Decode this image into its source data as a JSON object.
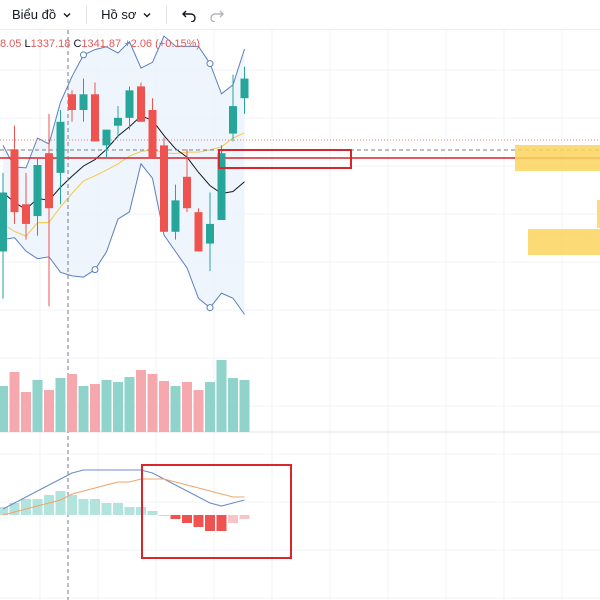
{
  "toolbar": {
    "chart_menu_label": "Biểu đồ",
    "profile_menu_label": "Hồ sơ",
    "undo_icon": "undo-icon",
    "redo_icon": "redo-icon"
  },
  "ohlc": {
    "high_fragment": "8.05",
    "low_label": "L",
    "low_value": "1337.18",
    "close_label": "C",
    "close_value": "1341.87",
    "change": "+2.06 (+0.15%)"
  },
  "colors": {
    "up": "#26a69a",
    "down": "#ef5350",
    "band": "#5b7fbf",
    "ma_fast": "#131722",
    "ma_slow": "#f2c94c",
    "annotation": "#d9252b",
    "zone": "#fbd35d"
  },
  "chart_data": {
    "type": "candlestick",
    "candles": [
      {
        "o": 1305,
        "h": 1325,
        "l": 1293,
        "c": 1320
      },
      {
        "o": 1331,
        "h": 1337,
        "l": 1312,
        "c": 1315
      },
      {
        "o": 1317,
        "h": 1325,
        "l": 1308,
        "c": 1312
      },
      {
        "o": 1314,
        "h": 1329,
        "l": 1309,
        "c": 1327
      },
      {
        "o": 1330,
        "h": 1340,
        "l": 1291,
        "c": 1316
      },
      {
        "o": 1325,
        "h": 1341,
        "l": 1317,
        "c": 1338
      },
      {
        "o": 1345,
        "h": 1346,
        "l": 1338,
        "c": 1341
      },
      {
        "o": 1341,
        "h": 1349,
        "l": 1338,
        "c": 1345
      },
      {
        "o": 1345,
        "h": 1348,
        "l": 1333,
        "c": 1333
      },
      {
        "o": 1332,
        "h": 1336,
        "l": 1329,
        "c": 1336
      },
      {
        "o": 1337,
        "h": 1342,
        "l": 1334,
        "c": 1339
      },
      {
        "o": 1339,
        "h": 1347,
        "l": 1336,
        "c": 1346
      },
      {
        "o": 1347,
        "h": 1348,
        "l": 1338,
        "c": 1338
      },
      {
        "o": 1341,
        "h": 1344,
        "l": 1329,
        "c": 1329
      },
      {
        "o": 1332,
        "h": 1334,
        "l": 1310,
        "c": 1310
      },
      {
        "o": 1310,
        "h": 1322,
        "l": 1308,
        "c": 1318
      },
      {
        "o": 1324,
        "h": 1331,
        "l": 1315,
        "c": 1316
      },
      {
        "o": 1315,
        "h": 1316,
        "l": 1305,
        "c": 1305
      },
      {
        "o": 1307,
        "h": 1320,
        "l": 1300,
        "c": 1312
      },
      {
        "o": 1313,
        "h": 1332,
        "l": 1313,
        "c": 1330
      },
      {
        "o": 1335,
        "h": 1350,
        "l": 1333,
        "c": 1342
      },
      {
        "o": 1344,
        "h": 1352,
        "l": 1340,
        "c": 1349
      }
    ],
    "volume": [
      46,
      60,
      40,
      52,
      42,
      54,
      58,
      46,
      48,
      52,
      50,
      55,
      62,
      58,
      51,
      46,
      50,
      42,
      50,
      72,
      54,
      52
    ],
    "macd_line": [
      -8,
      -6,
      -4,
      -2,
      0,
      2,
      4,
      5,
      5,
      5,
      5,
      5,
      5,
      4,
      2,
      0,
      -2,
      -4,
      -6,
      -7,
      -6,
      -5
    ],
    "signal_line": [
      -10,
      -9,
      -8,
      -7,
      -6,
      -5,
      -3,
      -2,
      -1,
      0,
      1,
      1,
      2,
      2,
      2,
      1,
      0,
      -1,
      -2,
      -3,
      -4,
      -4
    ],
    "histogram": [
      2,
      3,
      4,
      4,
      5,
      6,
      5,
      4,
      4,
      3,
      3,
      2,
      2,
      1,
      0,
      -1,
      -2,
      -3,
      -4,
      -4,
      -2,
      -1
    ]
  }
}
